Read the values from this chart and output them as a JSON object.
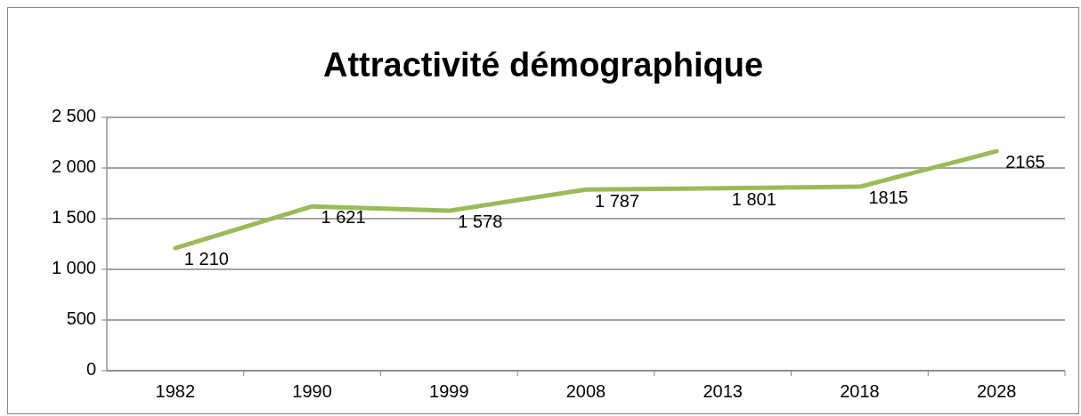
{
  "chart_data": {
    "type": "line",
    "title": "Attractivité démographique",
    "categories": [
      "1982",
      "1990",
      "1999",
      "2008",
      "2013",
      "2018",
      "2028"
    ],
    "series": [
      {
        "color": "#9bbb59",
        "values": [
          1210,
          1621,
          1578,
          1787,
          1801,
          1815,
          2165
        ],
        "value_labels": [
          "1 210",
          "1 621",
          "1 578",
          "1 787",
          "1 801",
          "1815",
          "2165"
        ]
      }
    ],
    "ylim": [
      0,
      2500
    ],
    "yticks": [
      0,
      500,
      {
        "value": 1000,
        "label": "1 000"
      },
      {
        "value": 1500,
        "label": "1 500"
      },
      {
        "value": 2000,
        "label": "2 000"
      },
      {
        "value": 2500,
        "label": "2 500"
      }
    ],
    "grid": "y",
    "marker": "none",
    "line_style": "solid"
  }
}
